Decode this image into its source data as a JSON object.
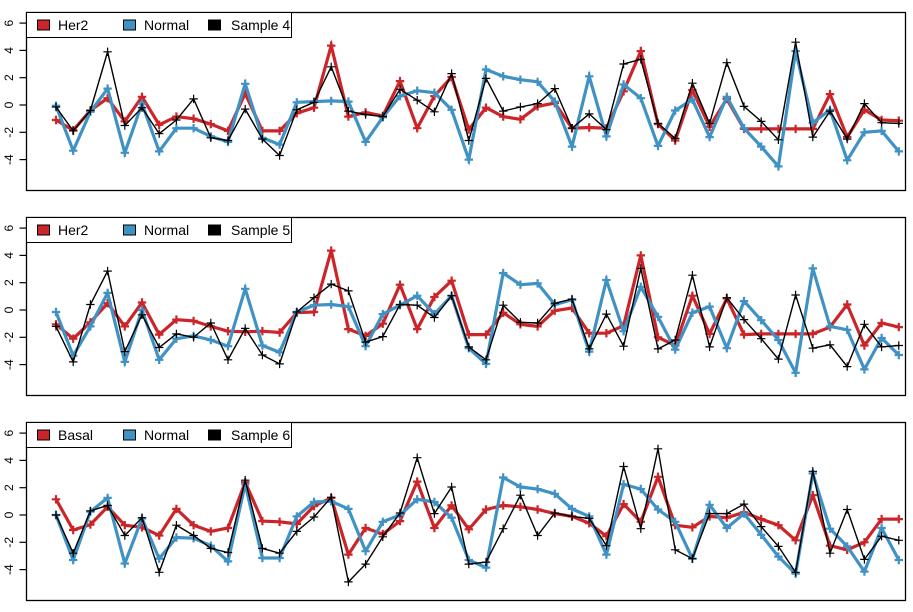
{
  "figure": {
    "background": "#ffffff",
    "n_panels": 3,
    "x_points": 50
  },
  "axes": {
    "yticks": [
      6,
      4,
      2,
      0,
      -2,
      -4
    ],
    "ylim": [
      -6.3,
      6.8
    ],
    "xticks": [],
    "xlabel": "",
    "ylabel": "",
    "tick_label_rotation_deg": 90
  },
  "colors": {
    "her2": "#CC2529",
    "basal": "#CC2529",
    "normal": "#4092C5",
    "sample": "#000000",
    "axis": "#000000"
  },
  "chart_data": [
    {
      "type": "line",
      "title": "",
      "legend_position": "top-left",
      "yticks": [
        6,
        4,
        2,
        0,
        -2,
        -4
      ],
      "ylim": [
        -6.3,
        6.8
      ],
      "marker": "plus",
      "grid": false,
      "series": [
        {
          "name": "Her2",
          "color": "#CC2529",
          "thick": true,
          "values": [
            -1.1,
            -1.85,
            -0.4,
            0.5,
            -1.2,
            0.6,
            -1.45,
            -0.85,
            -1.0,
            -1.4,
            -1.9,
            0.85,
            -1.9,
            -1.9,
            -0.6,
            -0.2,
            4.35,
            -0.85,
            -0.55,
            -0.8,
            1.75,
            -1.7,
            0.65,
            2.05,
            -1.8,
            -0.2,
            -0.85,
            -1.05,
            -0.1,
            0.15,
            -1.7,
            -1.65,
            -1.7,
            1.0,
            3.95,
            -1.4,
            -2.6,
            1.1,
            -1.6,
            0.45,
            -1.75,
            -1.75,
            -1.75,
            -1.75,
            -1.75,
            0.8,
            -2.35,
            -0.35,
            -1.1,
            -1.15
          ]
        },
        {
          "name": "Normal",
          "color": "#4092C5",
          "thick": true,
          "values": [
            -0.05,
            -3.35,
            -0.5,
            1.2,
            -3.5,
            0.1,
            -3.4,
            -1.7,
            -1.7,
            -2.3,
            -2.7,
            1.55,
            -2.4,
            -2.9,
            0.2,
            0.25,
            0.3,
            0.25,
            -2.7,
            -0.9,
            0.65,
            1.05,
            0.9,
            -0.35,
            -4.0,
            2.6,
            2.1,
            1.85,
            1.7,
            0.25,
            -3.05,
            2.1,
            -2.3,
            1.5,
            0.5,
            -3.0,
            -0.4,
            0.4,
            -2.35,
            0.6,
            -1.7,
            -3.05,
            -4.5,
            3.95,
            -1.3,
            -0.35,
            -4.05,
            -2.0,
            -1.9,
            -3.4
          ]
        },
        {
          "name": "Sample 4",
          "color": "#000000",
          "thick": false,
          "values": [
            -0.15,
            -1.9,
            -0.4,
            3.9,
            -1.5,
            -0.2,
            -2.1,
            -1.1,
            0.45,
            -2.4,
            -2.6,
            -0.3,
            -2.5,
            -3.7,
            -0.35,
            0.2,
            2.8,
            -0.45,
            -0.7,
            -0.85,
            1.15,
            0.35,
            -0.5,
            2.3,
            -2.6,
            1.95,
            -0.45,
            -0.15,
            0.1,
            1.2,
            -1.7,
            -0.65,
            -1.8,
            3.0,
            3.35,
            -1.35,
            -2.45,
            1.6,
            -1.35,
            3.1,
            -0.1,
            -1.2,
            -2.55,
            4.6,
            -2.35,
            -0.45,
            -2.5,
            0.1,
            -1.3,
            -1.35
          ]
        }
      ]
    },
    {
      "type": "line",
      "title": "",
      "legend_position": "top-left",
      "yticks": [
        6,
        4,
        2,
        0,
        -2,
        -4
      ],
      "ylim": [
        -6.3,
        6.8
      ],
      "marker": "plus",
      "grid": false,
      "series": [
        {
          "name": "Her2",
          "color": "#CC2529",
          "thick": true,
          "values": [
            -1.05,
            -2.1,
            -0.9,
            0.5,
            -1.2,
            0.55,
            -1.8,
            -0.7,
            -0.8,
            -1.2,
            -1.55,
            -1.6,
            -1.55,
            -1.65,
            -0.2,
            -0.15,
            4.35,
            -1.4,
            -1.9,
            -1.0,
            1.85,
            -1.4,
            0.95,
            2.15,
            -1.8,
            -1.8,
            -0.2,
            -1.05,
            -1.2,
            -0.05,
            0.15,
            -1.7,
            -1.7,
            -1.15,
            4.0,
            -2.0,
            -2.6,
            1.05,
            -1.75,
            0.85,
            -1.8,
            -1.75,
            -1.75,
            -1.75,
            -1.75,
            -1.25,
            0.4,
            -2.6,
            -0.95,
            -1.25
          ]
        },
        {
          "name": "Normal",
          "color": "#4092C5",
          "thick": true,
          "values": [
            -0.15,
            -3.35,
            -1.2,
            1.25,
            -3.8,
            0.0,
            -3.65,
            -2.1,
            -1.9,
            -2.2,
            -2.65,
            1.55,
            -2.6,
            -3.1,
            -0.15,
            0.35,
            0.4,
            0.25,
            -2.65,
            -0.3,
            0.35,
            1.05,
            -0.3,
            1.05,
            -2.8,
            -3.95,
            2.7,
            1.85,
            1.95,
            0.4,
            0.75,
            -3.05,
            2.2,
            -1.55,
            1.7,
            -0.5,
            -2.9,
            -0.2,
            0.25,
            -2.8,
            0.65,
            -0.75,
            -2.2,
            -4.6,
            3.05,
            -1.2,
            -1.45,
            -4.35,
            -2.05,
            -3.3
          ]
        },
        {
          "name": "Sample 5",
          "color": "#000000",
          "thick": false,
          "values": [
            -1.2,
            -3.8,
            0.4,
            2.85,
            -3.05,
            -0.35,
            -2.75,
            -1.75,
            -2.0,
            -0.95,
            -3.65,
            -1.35,
            -3.3,
            -3.95,
            -0.15,
            0.9,
            1.9,
            1.4,
            -2.35,
            -1.95,
            0.4,
            0.35,
            -0.55,
            1.05,
            -2.7,
            -3.65,
            0.35,
            -0.9,
            -0.95,
            0.5,
            0.8,
            -2.85,
            -0.3,
            -2.65,
            3.05,
            -2.85,
            -2.2,
            2.55,
            -2.7,
            0.9,
            -0.7,
            -2.1,
            -3.6,
            1.1,
            -2.8,
            -2.55,
            -4.15,
            -1.05,
            -2.7,
            -2.6
          ]
        }
      ]
    },
    {
      "type": "line",
      "title": "",
      "legend_position": "top-left",
      "yticks": [
        6,
        4,
        2,
        0,
        -2,
        -4
      ],
      "ylim": [
        -6.3,
        6.8
      ],
      "marker": "plus",
      "grid": false,
      "series": [
        {
          "name": "Basal",
          "color": "#CC2529",
          "thick": true,
          "values": [
            1.15,
            -1.1,
            -0.7,
            0.6,
            -0.75,
            -0.9,
            -1.5,
            0.45,
            -0.75,
            -1.2,
            -0.95,
            2.4,
            -0.45,
            -0.5,
            -0.65,
            0.65,
            1.25,
            -2.9,
            -0.95,
            -1.4,
            -0.45,
            2.45,
            -0.95,
            0.7,
            -1.05,
            0.4,
            0.7,
            0.6,
            0.4,
            0.1,
            -0.1,
            -0.6,
            -1.55,
            0.8,
            -0.5,
            2.8,
            -0.75,
            -0.9,
            -0.1,
            -0.2,
            0.2,
            -0.3,
            -0.75,
            -1.85,
            1.45,
            -2.25,
            -2.55,
            -2.0,
            -0.3,
            -0.3
          ]
        },
        {
          "name": "Normal",
          "color": "#4092C5",
          "thick": true,
          "values": [
            0.0,
            -3.3,
            0.25,
            1.25,
            -3.55,
            -0.25,
            -3.2,
            -1.65,
            -1.7,
            -2.25,
            -3.4,
            2.25,
            -3.15,
            -3.15,
            -0.1,
            0.95,
            1.0,
            0.45,
            -2.65,
            -0.5,
            0.0,
            1.15,
            0.95,
            -0.2,
            -3.3,
            -3.85,
            2.75,
            2.05,
            1.9,
            1.55,
            0.45,
            -0.1,
            -2.9,
            2.25,
            1.9,
            0.4,
            -0.5,
            -3.2,
            0.75,
            -0.95,
            0.1,
            -1.45,
            -3.05,
            -4.3,
            3.05,
            -1.0,
            -2.3,
            -4.15,
            -0.95,
            -3.3
          ]
        },
        {
          "name": "Sample 6",
          "color": "#000000",
          "thick": false,
          "values": [
            0.0,
            -2.8,
            0.3,
            0.7,
            -1.5,
            -0.2,
            -4.2,
            -0.75,
            -1.5,
            -2.45,
            -2.75,
            2.55,
            -2.45,
            -2.8,
            -1.2,
            -0.15,
            1.3,
            -4.9,
            -3.6,
            -1.6,
            0.15,
            4.2,
            0.1,
            2.05,
            -3.6,
            -3.45,
            -1.0,
            1.45,
            -1.5,
            0.15,
            -0.1,
            -0.25,
            -2.25,
            3.55,
            -1.0,
            4.85,
            -2.55,
            -3.2,
            0.1,
            0.1,
            0.8,
            -0.85,
            -2.3,
            -4.2,
            3.2,
            -2.8,
            0.4,
            -3.25,
            -1.55,
            -1.85
          ]
        }
      ]
    }
  ]
}
